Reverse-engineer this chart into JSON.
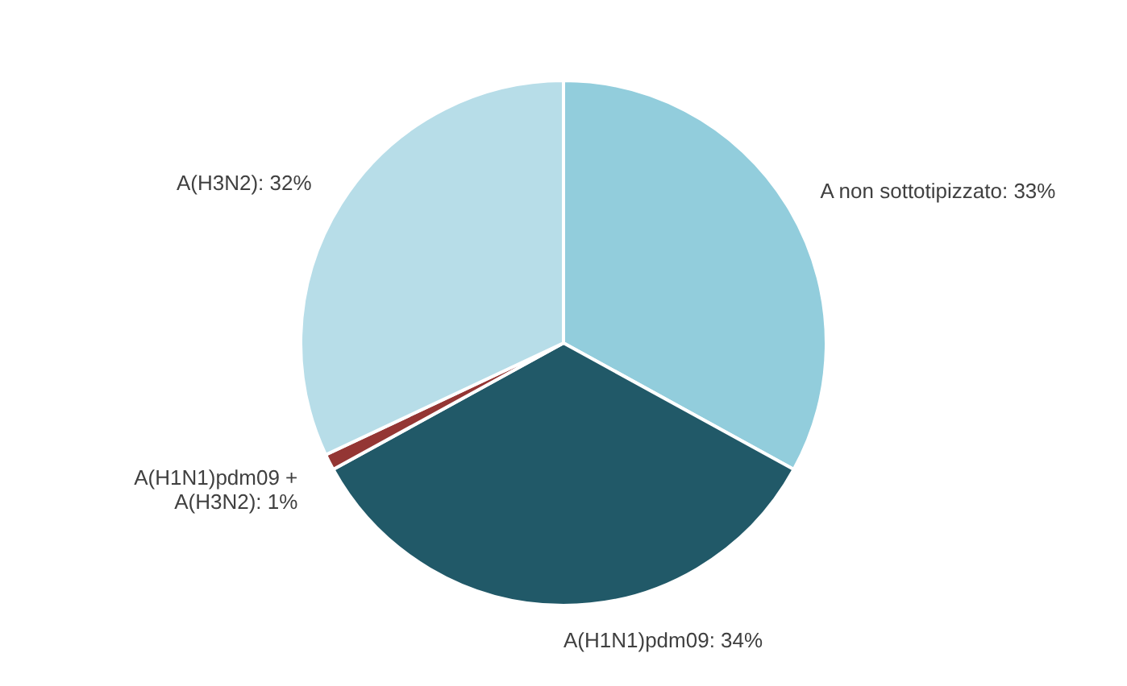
{
  "chart_data": {
    "type": "pie",
    "categories": [
      "A non sottotipizzato: 33%",
      "A(H1N1)pdm09: 34%",
      "A(H1N1)pdm09 + A(H3N2): 1%",
      "A(H3N2): 32%"
    ],
    "values": [
      33,
      34,
      1,
      32
    ],
    "colors": [
      "#92cddc",
      "#215968",
      "#943634",
      "#b7dde8"
    ]
  }
}
